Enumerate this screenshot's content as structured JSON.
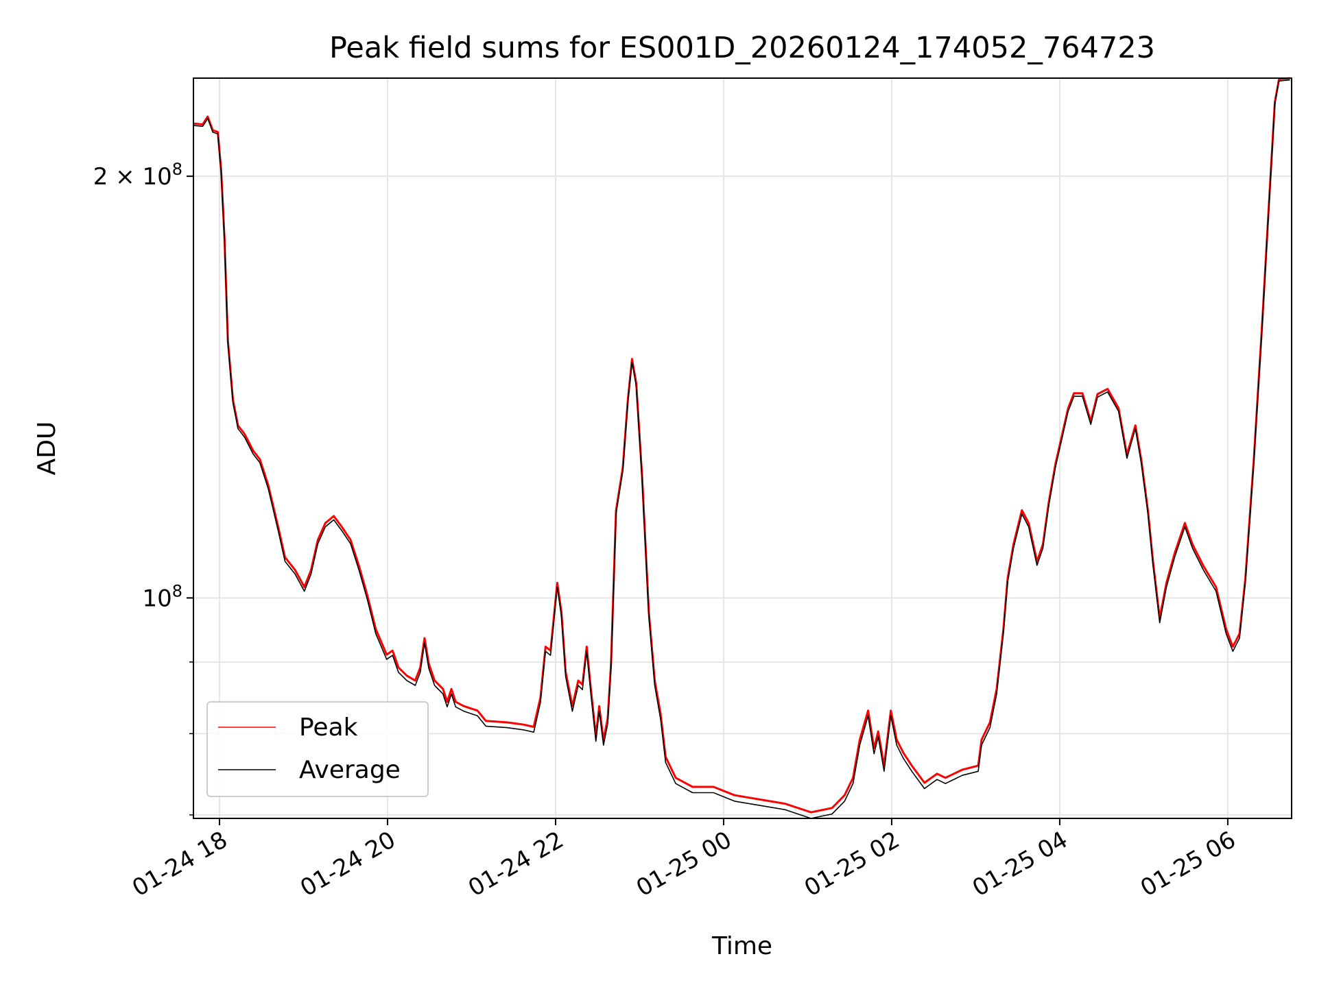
{
  "chart_data": {
    "type": "line",
    "title": "Peak field sums for ES001D_20260124_174052_764723",
    "xlabel": "Time",
    "ylabel": "ADU",
    "yscale": "log",
    "x_unit": "hours since 01-24 00:00",
    "y_unit": 100000000,
    "xlim": [
      17.69,
      30.76
    ],
    "ylim": [
      0.696,
      2.35
    ],
    "grid": true,
    "legend_position": "lower-left",
    "xticks": [
      {
        "value": 18,
        "label": "01-24 18"
      },
      {
        "value": 20,
        "label": "01-24 20"
      },
      {
        "value": 22,
        "label": "01-24 22"
      },
      {
        "value": 24,
        "label": "01-25 00"
      },
      {
        "value": 26,
        "label": "01-25 02"
      },
      {
        "value": 28,
        "label": "01-25 04"
      },
      {
        "value": 30,
        "label": "01-25 06"
      }
    ],
    "yticks_major": [
      {
        "value": 2,
        "label_base": "2 × 10",
        "label_exp": "8"
      },
      {
        "value": 1,
        "label_base": "10",
        "label_exp": "8"
      }
    ],
    "yticks_minor": [
      0.9,
      0.8,
      0.7
    ],
    "x": [
      17.69,
      17.8,
      17.86,
      17.92,
      17.98,
      18.02,
      18.06,
      18.1,
      18.16,
      18.22,
      18.3,
      18.4,
      18.48,
      18.58,
      18.7,
      18.78,
      18.9,
      19.01,
      19.09,
      19.17,
      19.26,
      19.36,
      19.46,
      19.56,
      19.66,
      19.76,
      19.86,
      19.99,
      20.06,
      20.13,
      20.23,
      20.33,
      20.39,
      20.44,
      20.49,
      20.56,
      20.66,
      20.71,
      20.76,
      20.81,
      20.91,
      21.07,
      21.17,
      21.42,
      21.62,
      21.74,
      21.82,
      21.88,
      21.94,
      22.02,
      22.07,
      22.12,
      22.2,
      22.27,
      22.32,
      22.37,
      22.42,
      22.48,
      22.52,
      22.57,
      22.62,
      22.66,
      22.72,
      22.8,
      22.86,
      22.91,
      22.96,
      23.03,
      23.11,
      23.18,
      23.25,
      23.31,
      23.43,
      23.63,
      23.88,
      24.13,
      24.43,
      24.73,
      25.04,
      25.29,
      25.44,
      25.54,
      25.62,
      25.72,
      25.79,
      25.84,
      25.91,
      25.99,
      26.06,
      26.14,
      26.24,
      26.39,
      26.54,
      26.64,
      26.84,
      27.03,
      27.07,
      27.17,
      27.25,
      27.33,
      27.38,
      27.45,
      27.55,
      27.63,
      27.73,
      27.8,
      27.87,
      27.95,
      28.03,
      28.1,
      28.17,
      28.27,
      28.37,
      28.45,
      28.57,
      28.7,
      28.8,
      28.9,
      28.97,
      29.05,
      29.11,
      29.19,
      29.27,
      29.37,
      29.49,
      29.58,
      29.71,
      29.86,
      29.98,
      30.06,
      30.14,
      30.21,
      30.31,
      30.41,
      30.49,
      30.56,
      30.61,
      30.74
    ],
    "series": [
      {
        "name": "Peak",
        "color": "#ff0000",
        "values": [
          2.181,
          2.178,
          2.206,
          2.157,
          2.151,
          2.02,
          1.806,
          1.527,
          1.385,
          1.328,
          1.309,
          1.274,
          1.256,
          1.204,
          1.123,
          1.069,
          1.047,
          1.018,
          1.047,
          1.1,
          1.131,
          1.144,
          1.123,
          1.1,
          1.054,
          1.004,
          0.95,
          0.911,
          0.917,
          0.892,
          0.88,
          0.873,
          0.892,
          0.936,
          0.898,
          0.873,
          0.861,
          0.843,
          0.861,
          0.843,
          0.837,
          0.831,
          0.817,
          0.815,
          0.812,
          0.809,
          0.849,
          0.923,
          0.917,
          1.025,
          0.977,
          0.886,
          0.837,
          0.873,
          0.867,
          0.923,
          0.861,
          0.797,
          0.837,
          0.792,
          0.82,
          0.898,
          1.155,
          1.238,
          1.385,
          1.481,
          1.424,
          1.221,
          0.977,
          0.873,
          0.826,
          0.77,
          0.744,
          0.733,
          0.733,
          0.723,
          0.718,
          0.713,
          0.703,
          0.708,
          0.723,
          0.744,
          0.792,
          0.831,
          0.781,
          0.803,
          0.759,
          0.831,
          0.792,
          0.775,
          0.759,
          0.738,
          0.749,
          0.744,
          0.754,
          0.759,
          0.792,
          0.815,
          0.861,
          0.95,
          1.033,
          1.092,
          1.155,
          1.131,
          1.062,
          1.092,
          1.171,
          1.247,
          1.309,
          1.366,
          1.4,
          1.4,
          1.337,
          1.398,
          1.41,
          1.366,
          1.265,
          1.328,
          1.256,
          1.155,
          1.062,
          0.967,
          1.025,
          1.077,
          1.131,
          1.092,
          1.054,
          1.018,
          0.95,
          0.923,
          0.943,
          1.033,
          1.256,
          1.571,
          1.91,
          2.258,
          2.346,
          2.35
        ]
      },
      {
        "name": "Average",
        "color": "#000000",
        "values": [
          2.174,
          2.171,
          2.199,
          2.15,
          2.144,
          2.013,
          1.799,
          1.52,
          1.378,
          1.321,
          1.302,
          1.267,
          1.249,
          1.197,
          1.116,
          1.062,
          1.04,
          1.011,
          1.04,
          1.093,
          1.124,
          1.137,
          1.116,
          1.093,
          1.047,
          0.997,
          0.943,
          0.904,
          0.91,
          0.885,
          0.873,
          0.866,
          0.885,
          0.929,
          0.891,
          0.866,
          0.854,
          0.836,
          0.854,
          0.836,
          0.83,
          0.824,
          0.81,
          0.808,
          0.805,
          0.802,
          0.842,
          0.916,
          0.91,
          1.018,
          0.97,
          0.879,
          0.83,
          0.866,
          0.86,
          0.916,
          0.854,
          0.79,
          0.83,
          0.785,
          0.813,
          0.891,
          1.148,
          1.231,
          1.378,
          1.474,
          1.417,
          1.214,
          0.97,
          0.866,
          0.819,
          0.763,
          0.737,
          0.726,
          0.726,
          0.716,
          0.711,
          0.706,
          0.696,
          0.701,
          0.716,
          0.737,
          0.785,
          0.824,
          0.774,
          0.796,
          0.752,
          0.824,
          0.785,
          0.768,
          0.752,
          0.731,
          0.742,
          0.737,
          0.747,
          0.752,
          0.785,
          0.808,
          0.854,
          0.943,
          1.026,
          1.085,
          1.148,
          1.124,
          1.055,
          1.085,
          1.164,
          1.24,
          1.302,
          1.359,
          1.393,
          1.393,
          1.33,
          1.391,
          1.403,
          1.359,
          1.258,
          1.321,
          1.249,
          1.148,
          1.055,
          0.96,
          1.018,
          1.07,
          1.124,
          1.085,
          1.047,
          1.011,
          0.943,
          0.916,
          0.936,
          1.026,
          1.249,
          1.564,
          1.903,
          2.251,
          2.339,
          2.343
        ]
      }
    ]
  }
}
